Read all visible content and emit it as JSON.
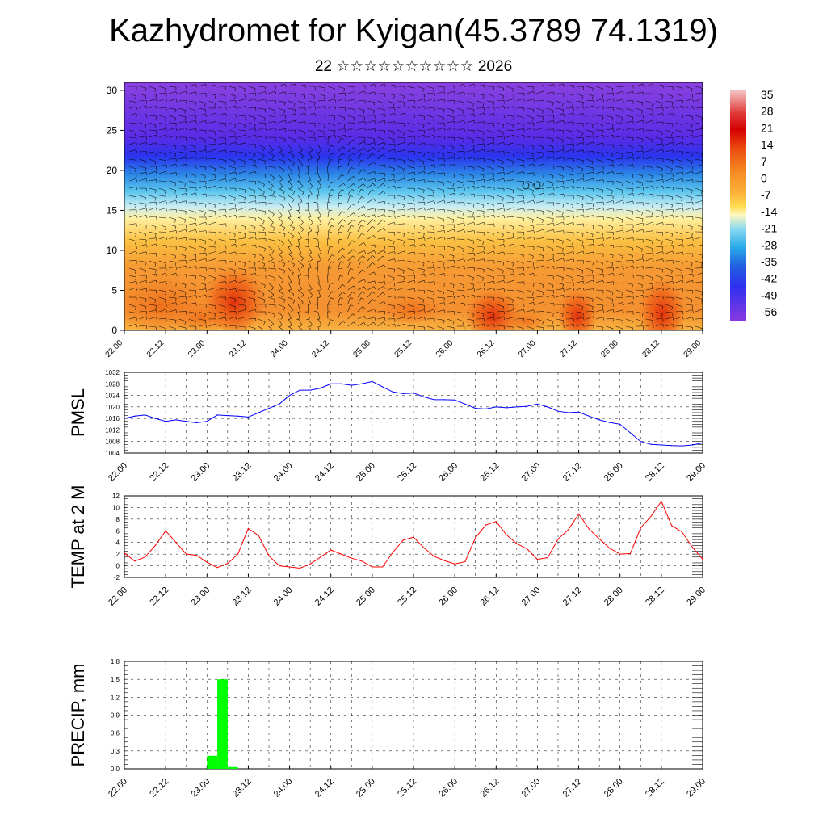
{
  "header": {
    "title": "Kazhydromet for Kyigan(45.3789 74.1319)",
    "subtitle": "22 ☆☆☆☆☆☆☆☆☆☆ 2026"
  },
  "chart_data": [
    {
      "type": "heatmap",
      "name": "temperature-cross-section",
      "title": "",
      "xlabel": "",
      "ylabel": "",
      "x_ticks": [
        "22.00",
        "22.12",
        "23.00",
        "23.12",
        "24.00",
        "24.12",
        "25.00",
        "25.12",
        "26.00",
        "26.12",
        "27.00",
        "27.12",
        "28.00",
        "28.12",
        "29.00"
      ],
      "y_ticks": [
        0,
        5,
        10,
        15,
        20,
        25,
        30
      ],
      "ylim": [
        0,
        31
      ],
      "overlay": "wind barbs",
      "colorbar": {
        "labels": [
          "35",
          "28",
          "21",
          "14",
          "7",
          "0",
          "-7",
          "-14",
          "-21",
          "-28",
          "-35",
          "-42",
          "-49",
          "-56"
        ],
        "colors": [
          "#f4bcbc",
          "#e03a3a",
          "#d40000",
          "#ec4a10",
          "#f58220",
          "#fcae3a",
          "#ffd84a",
          "#fff6b0",
          "#8ad8f0",
          "#2ab0ea",
          "#2070e0",
          "#3a3af0",
          "#5a2ae8",
          "#8a3ae0"
        ]
      }
    },
    {
      "type": "line",
      "name": "pmsl",
      "ylabel": "PMSL",
      "color": "#0000ff",
      "ylim": [
        1004,
        1032
      ],
      "y_ticks": [
        1004,
        1008,
        1012,
        1016,
        1020,
        1024,
        1028,
        1032
      ],
      "x_ticks": [
        "22.00",
        "22.12",
        "23.00",
        "23.12",
        "24.00",
        "24.12",
        "25.00",
        "25.12",
        "26.00",
        "26.12",
        "27.00",
        "27.12",
        "28.00",
        "28.12",
        "29.00"
      ],
      "x": [
        0,
        3,
        6,
        9,
        12,
        15,
        18,
        21,
        24,
        27,
        30,
        33,
        36,
        39,
        42,
        45,
        48,
        51,
        54,
        57,
        60,
        63,
        66,
        69,
        72,
        75,
        78,
        81,
        84,
        87,
        90,
        93,
        96,
        99,
        102,
        105,
        108,
        111,
        114,
        117,
        120,
        123,
        126,
        129,
        132,
        135,
        138,
        141,
        144,
        147,
        150,
        153,
        156,
        159,
        162,
        165,
        168
      ],
      "y": [
        1016,
        1016.8,
        1017.2,
        1016,
        1015,
        1015.5,
        1015,
        1014.5,
        1015,
        1017.2,
        1017,
        1016.8,
        1016.5,
        1018,
        1019.5,
        1021,
        1024,
        1025.8,
        1025.8,
        1026.5,
        1028,
        1028,
        1027.5,
        1028,
        1028.8,
        1027,
        1025.2,
        1024.6,
        1024.8,
        1023.5,
        1022.5,
        1022.5,
        1022.4,
        1021,
        1019.5,
        1019.3,
        1020,
        1019.7,
        1020,
        1020.2,
        1021,
        1020,
        1018.5,
        1018,
        1018.2,
        1016.8,
        1015.5,
        1014.6,
        1014,
        1011,
        1008,
        1007,
        1006.8,
        1006.6,
        1006.5,
        1006.8,
        1007.5
      ]
    },
    {
      "type": "line",
      "name": "temp-2m",
      "ylabel": "TEMP at 2 M",
      "color": "#ff0000",
      "ylim": [
        -2,
        12
      ],
      "y_ticks": [
        -2,
        0,
        2,
        4,
        6,
        8,
        10,
        12
      ],
      "x_ticks": [
        "22.00",
        "22.12",
        "23.00",
        "23.12",
        "24.00",
        "24.12",
        "25.00",
        "25.12",
        "26.00",
        "26.12",
        "27.00",
        "27.12",
        "28.00",
        "28.12",
        "29.00"
      ],
      "x": [
        0,
        3,
        6,
        9,
        12,
        15,
        18,
        21,
        24,
        27,
        30,
        33,
        36,
        39,
        42,
        45,
        48,
        51,
        54,
        57,
        60,
        63,
        66,
        69,
        72,
        75,
        78,
        81,
        84,
        87,
        90,
        93,
        96,
        99,
        102,
        105,
        108,
        111,
        114,
        117,
        120,
        123,
        126,
        129,
        132,
        135,
        138,
        141,
        144,
        147,
        150,
        153,
        156,
        159,
        162,
        165,
        168
      ],
      "y": [
        2.2,
        0.8,
        1.5,
        3.5,
        6,
        4,
        2,
        1.8,
        0.6,
        -0.3,
        0.4,
        2,
        6.4,
        5.2,
        1.7,
        0,
        -0.2,
        -0.4,
        0.3,
        1.5,
        2.7,
        2,
        1.3,
        0.8,
        -0.2,
        -0.2,
        2.3,
        4.4,
        4.9,
        3.1,
        1.6,
        0.9,
        0.3,
        0.7,
        4.8,
        7,
        7.6,
        5.3,
        3.8,
        2.9,
        1.1,
        1.4,
        4.6,
        6.2,
        8.9,
        6.3,
        4.6,
        3,
        2,
        2.1,
        6.5,
        8.5,
        11.1,
        6.9,
        5.8,
        3.2,
        1.1
      ]
    },
    {
      "type": "bar",
      "name": "precipitation",
      "ylabel": "PRECIP, mm",
      "color": "#00ff00",
      "ylim": [
        0,
        1.8
      ],
      "y_ticks": [
        "0.0",
        "0.3",
        "0.6",
        "0.9",
        "1.2",
        "1.5",
        "1.8"
      ],
      "x_ticks": [
        "22.00",
        "22.12",
        "23.00",
        "23.12",
        "24.00",
        "24.12",
        "25.00",
        "25.12",
        "26.00",
        "26.12",
        "27.00",
        "27.12",
        "28.00",
        "28.12",
        "29.00"
      ],
      "bars": [
        {
          "x_start": 24,
          "x_end": 27,
          "value": 0.22
        },
        {
          "x_start": 27,
          "x_end": 30,
          "value": 1.5
        },
        {
          "x_start": 30,
          "x_end": 33,
          "value": 0.03
        }
      ]
    }
  ]
}
